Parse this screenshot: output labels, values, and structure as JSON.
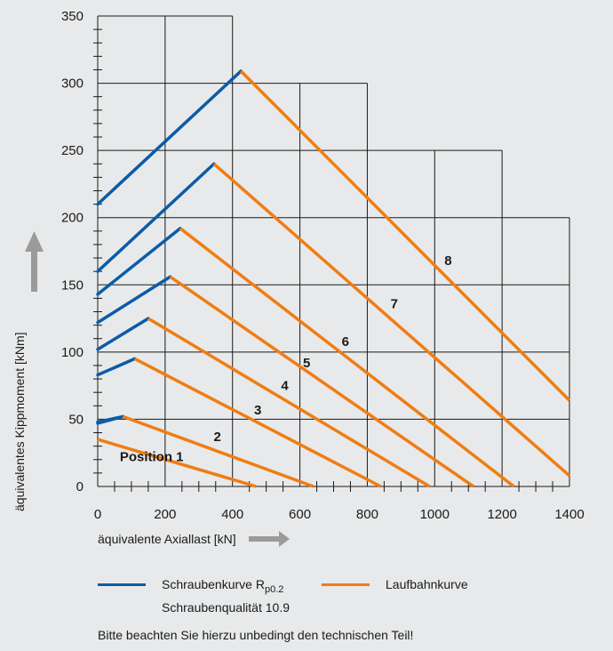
{
  "chart_data": {
    "type": "line",
    "xlabel": "äquivalente Axiallast [kN]",
    "ylabel": "äquivalentes Kippmoment [kNm]",
    "xlim": [
      0,
      1400
    ],
    "ylim": [
      0,
      350
    ],
    "x_ticks": [
      "0",
      "200",
      "400",
      "600",
      "800",
      "1000",
      "1200",
      "1400"
    ],
    "y_ticks": [
      "0",
      "50",
      "100",
      "150",
      "200",
      "250",
      "300",
      "350"
    ],
    "grid": true,
    "colors": {
      "schraube": "#0a5ca8",
      "laufbahn": "#ef7d14",
      "grid": "#1a1a1a",
      "arrow": "#9a9a9a"
    },
    "series": [
      {
        "name": "Position 1",
        "schraube": [
          [
            0,
            47
          ],
          [
            75,
            52
          ]
        ],
        "laufbahn": [
          [
            0,
            35
          ],
          [
            470,
            0
          ]
        ],
        "label_at": [
          160,
          22
        ]
      },
      {
        "name": "2",
        "schraube": [
          [
            0,
            48
          ],
          [
            75,
            52
          ]
        ],
        "laufbahn": [
          [
            75,
            52
          ],
          [
            640,
            0
          ]
        ],
        "label_at": [
          355,
          37
        ]
      },
      {
        "name": "3",
        "schraube": [
          [
            0,
            83
          ],
          [
            110,
            95
          ]
        ],
        "laufbahn": [
          [
            110,
            95
          ],
          [
            840,
            0
          ]
        ],
        "label_at": [
          475,
          57
        ]
      },
      {
        "name": "4",
        "schraube": [
          [
            0,
            102
          ],
          [
            150,
            125
          ]
        ],
        "laufbahn": [
          [
            150,
            125
          ],
          [
            985,
            0
          ]
        ],
        "label_at": [
          555,
          75
        ]
      },
      {
        "name": "5",
        "schraube": [
          [
            0,
            122
          ],
          [
            215,
            156
          ]
        ],
        "laufbahn": [
          [
            215,
            156
          ],
          [
            1115,
            0
          ]
        ],
        "label_at": [
          620,
          92
        ]
      },
      {
        "name": "6",
        "schraube": [
          [
            0,
            143
          ],
          [
            245,
            192
          ]
        ],
        "laufbahn": [
          [
            245,
            192
          ],
          [
            1235,
            0
          ]
        ],
        "label_at": [
          735,
          108
        ]
      },
      {
        "name": "7",
        "schraube": [
          [
            0,
            160
          ],
          [
            345,
            240
          ]
        ],
        "laufbahn": [
          [
            345,
            240
          ],
          [
            1400,
            8
          ]
        ],
        "label_at": [
          880,
          136
        ]
      },
      {
        "name": "8",
        "schraube": [
          [
            0,
            210
          ],
          [
            425,
            309
          ]
        ],
        "laufbahn": [
          [
            425,
            309
          ],
          [
            1400,
            64
          ]
        ],
        "label_at": [
          1040,
          168
        ]
      }
    ],
    "grid_outline": [
      [
        0,
        350
      ],
      [
        400,
        350
      ],
      [
        400,
        300
      ],
      [
        600,
        300
      ],
      [
        800,
        300
      ],
      [
        800,
        250
      ],
      [
        1200,
        250
      ],
      [
        1200,
        200
      ],
      [
        1400,
        200
      ],
      [
        1400,
        0
      ]
    ]
  },
  "legend": {
    "schraube_label": "Schraubenkurve  R",
    "schraube_sub": "p0.2",
    "schraube_label2": "Schraubenqualität 10.9",
    "laufbahn_label": "Laufbahnkurve"
  },
  "note": "Bitte beachten Sie hierzu unbedingt den technischen Teil!"
}
